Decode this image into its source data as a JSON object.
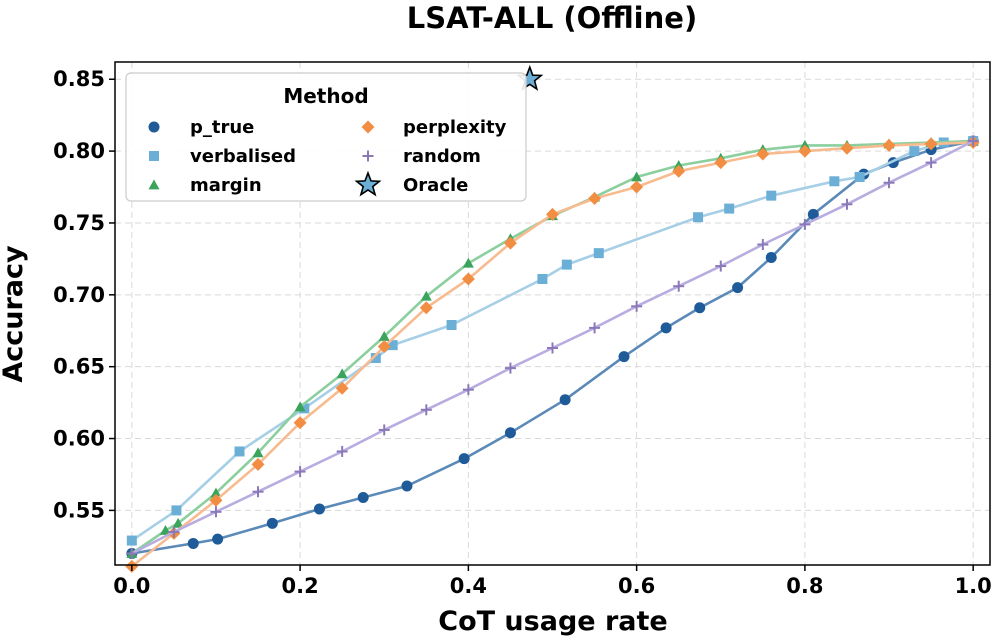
{
  "chart_data": {
    "type": "line",
    "title": "LSAT-ALL (Offline)",
    "xlabel": "CoT usage rate",
    "ylabel": "Accuracy",
    "xlim": [
      -0.02,
      1.02
    ],
    "ylim": [
      0.512,
      0.862
    ],
    "xticks": [
      0.0,
      0.2,
      0.4,
      0.6,
      0.8,
      1.0
    ],
    "xtick_labels": [
      "0.0",
      "0.2",
      "0.4",
      "0.6",
      "0.8",
      "1.0"
    ],
    "yticks": [
      0.55,
      0.6,
      0.65,
      0.7,
      0.75,
      0.8,
      0.85
    ],
    "ytick_labels": [
      "0.55",
      "0.60",
      "0.65",
      "0.70",
      "0.75",
      "0.80",
      "0.85"
    ],
    "grid": true,
    "legend": {
      "title": "Method",
      "position": "top-left"
    },
    "series": [
      {
        "name": "p_true",
        "color": "#1f5a99",
        "line_color": "#5b8ab8",
        "marker": "circle",
        "x": [
          0.0,
          0.073,
          0.102,
          0.167,
          0.223,
          0.275,
          0.327,
          0.395,
          0.45,
          0.515,
          0.585,
          0.635,
          0.675,
          0.72,
          0.76,
          0.81,
          0.87,
          0.905,
          0.95,
          1.0
        ],
        "y": [
          0.52,
          0.527,
          0.53,
          0.541,
          0.551,
          0.559,
          0.567,
          0.586,
          0.604,
          0.627,
          0.657,
          0.677,
          0.691,
          0.705,
          0.726,
          0.756,
          0.784,
          0.792,
          0.801,
          0.807
        ]
      },
      {
        "name": "verbalised",
        "color": "#6baed6",
        "line_color": "#a6cfe6",
        "marker": "square",
        "x": [
          0.0,
          0.053,
          0.128,
          0.205,
          0.29,
          0.31,
          0.38,
          0.488,
          0.517,
          0.555,
          0.673,
          0.71,
          0.76,
          0.835,
          0.865,
          0.93,
          0.965,
          1.0
        ],
        "y": [
          0.529,
          0.55,
          0.591,
          0.621,
          0.656,
          0.665,
          0.679,
          0.711,
          0.721,
          0.729,
          0.754,
          0.76,
          0.769,
          0.779,
          0.782,
          0.8,
          0.806,
          0.807
        ]
      },
      {
        "name": "margin",
        "color": "#3aa35c",
        "line_color": "#8ccf9f",
        "marker": "triangle",
        "x": [
          0.0,
          0.04,
          0.055,
          0.1,
          0.15,
          0.2,
          0.25,
          0.3,
          0.35,
          0.4,
          0.45,
          0.5,
          0.55,
          0.6,
          0.65,
          0.7,
          0.75,
          0.8,
          0.85,
          0.9,
          0.95,
          1.0
        ],
        "y": [
          0.52,
          0.536,
          0.541,
          0.562,
          0.59,
          0.622,
          0.645,
          0.671,
          0.699,
          0.722,
          0.739,
          0.755,
          0.768,
          0.782,
          0.79,
          0.795,
          0.801,
          0.804,
          0.804,
          0.805,
          0.806,
          0.807
        ]
      },
      {
        "name": "perplexity",
        "color": "#f28e43",
        "line_color": "#f7bb8f",
        "marker": "diamond",
        "x": [
          0.0,
          0.05,
          0.1,
          0.15,
          0.2,
          0.25,
          0.3,
          0.35,
          0.4,
          0.45,
          0.5,
          0.55,
          0.6,
          0.65,
          0.7,
          0.75,
          0.8,
          0.85,
          0.9,
          0.95,
          1.0
        ],
        "y": [
          0.511,
          0.534,
          0.557,
          0.582,
          0.611,
          0.635,
          0.664,
          0.691,
          0.711,
          0.736,
          0.756,
          0.767,
          0.775,
          0.786,
          0.792,
          0.798,
          0.8,
          0.802,
          0.804,
          0.805,
          0.806
        ]
      },
      {
        "name": "random",
        "color": "#8a78b8",
        "line_color": "#b8ace0",
        "marker": "plus",
        "x": [
          0.0,
          0.05,
          0.1,
          0.15,
          0.2,
          0.25,
          0.3,
          0.35,
          0.4,
          0.45,
          0.5,
          0.55,
          0.6,
          0.65,
          0.7,
          0.75,
          0.8,
          0.85,
          0.9,
          0.95,
          1.0
        ],
        "y": [
          0.52,
          0.535,
          0.549,
          0.563,
          0.577,
          0.591,
          0.606,
          0.62,
          0.634,
          0.649,
          0.663,
          0.677,
          0.692,
          0.706,
          0.72,
          0.735,
          0.749,
          0.763,
          0.778,
          0.792,
          0.807
        ]
      },
      {
        "name": "Oracle",
        "color": "#6baed6",
        "line_color": "none",
        "marker": "star",
        "x": [
          0.473
        ],
        "y": [
          0.85
        ]
      }
    ]
  }
}
